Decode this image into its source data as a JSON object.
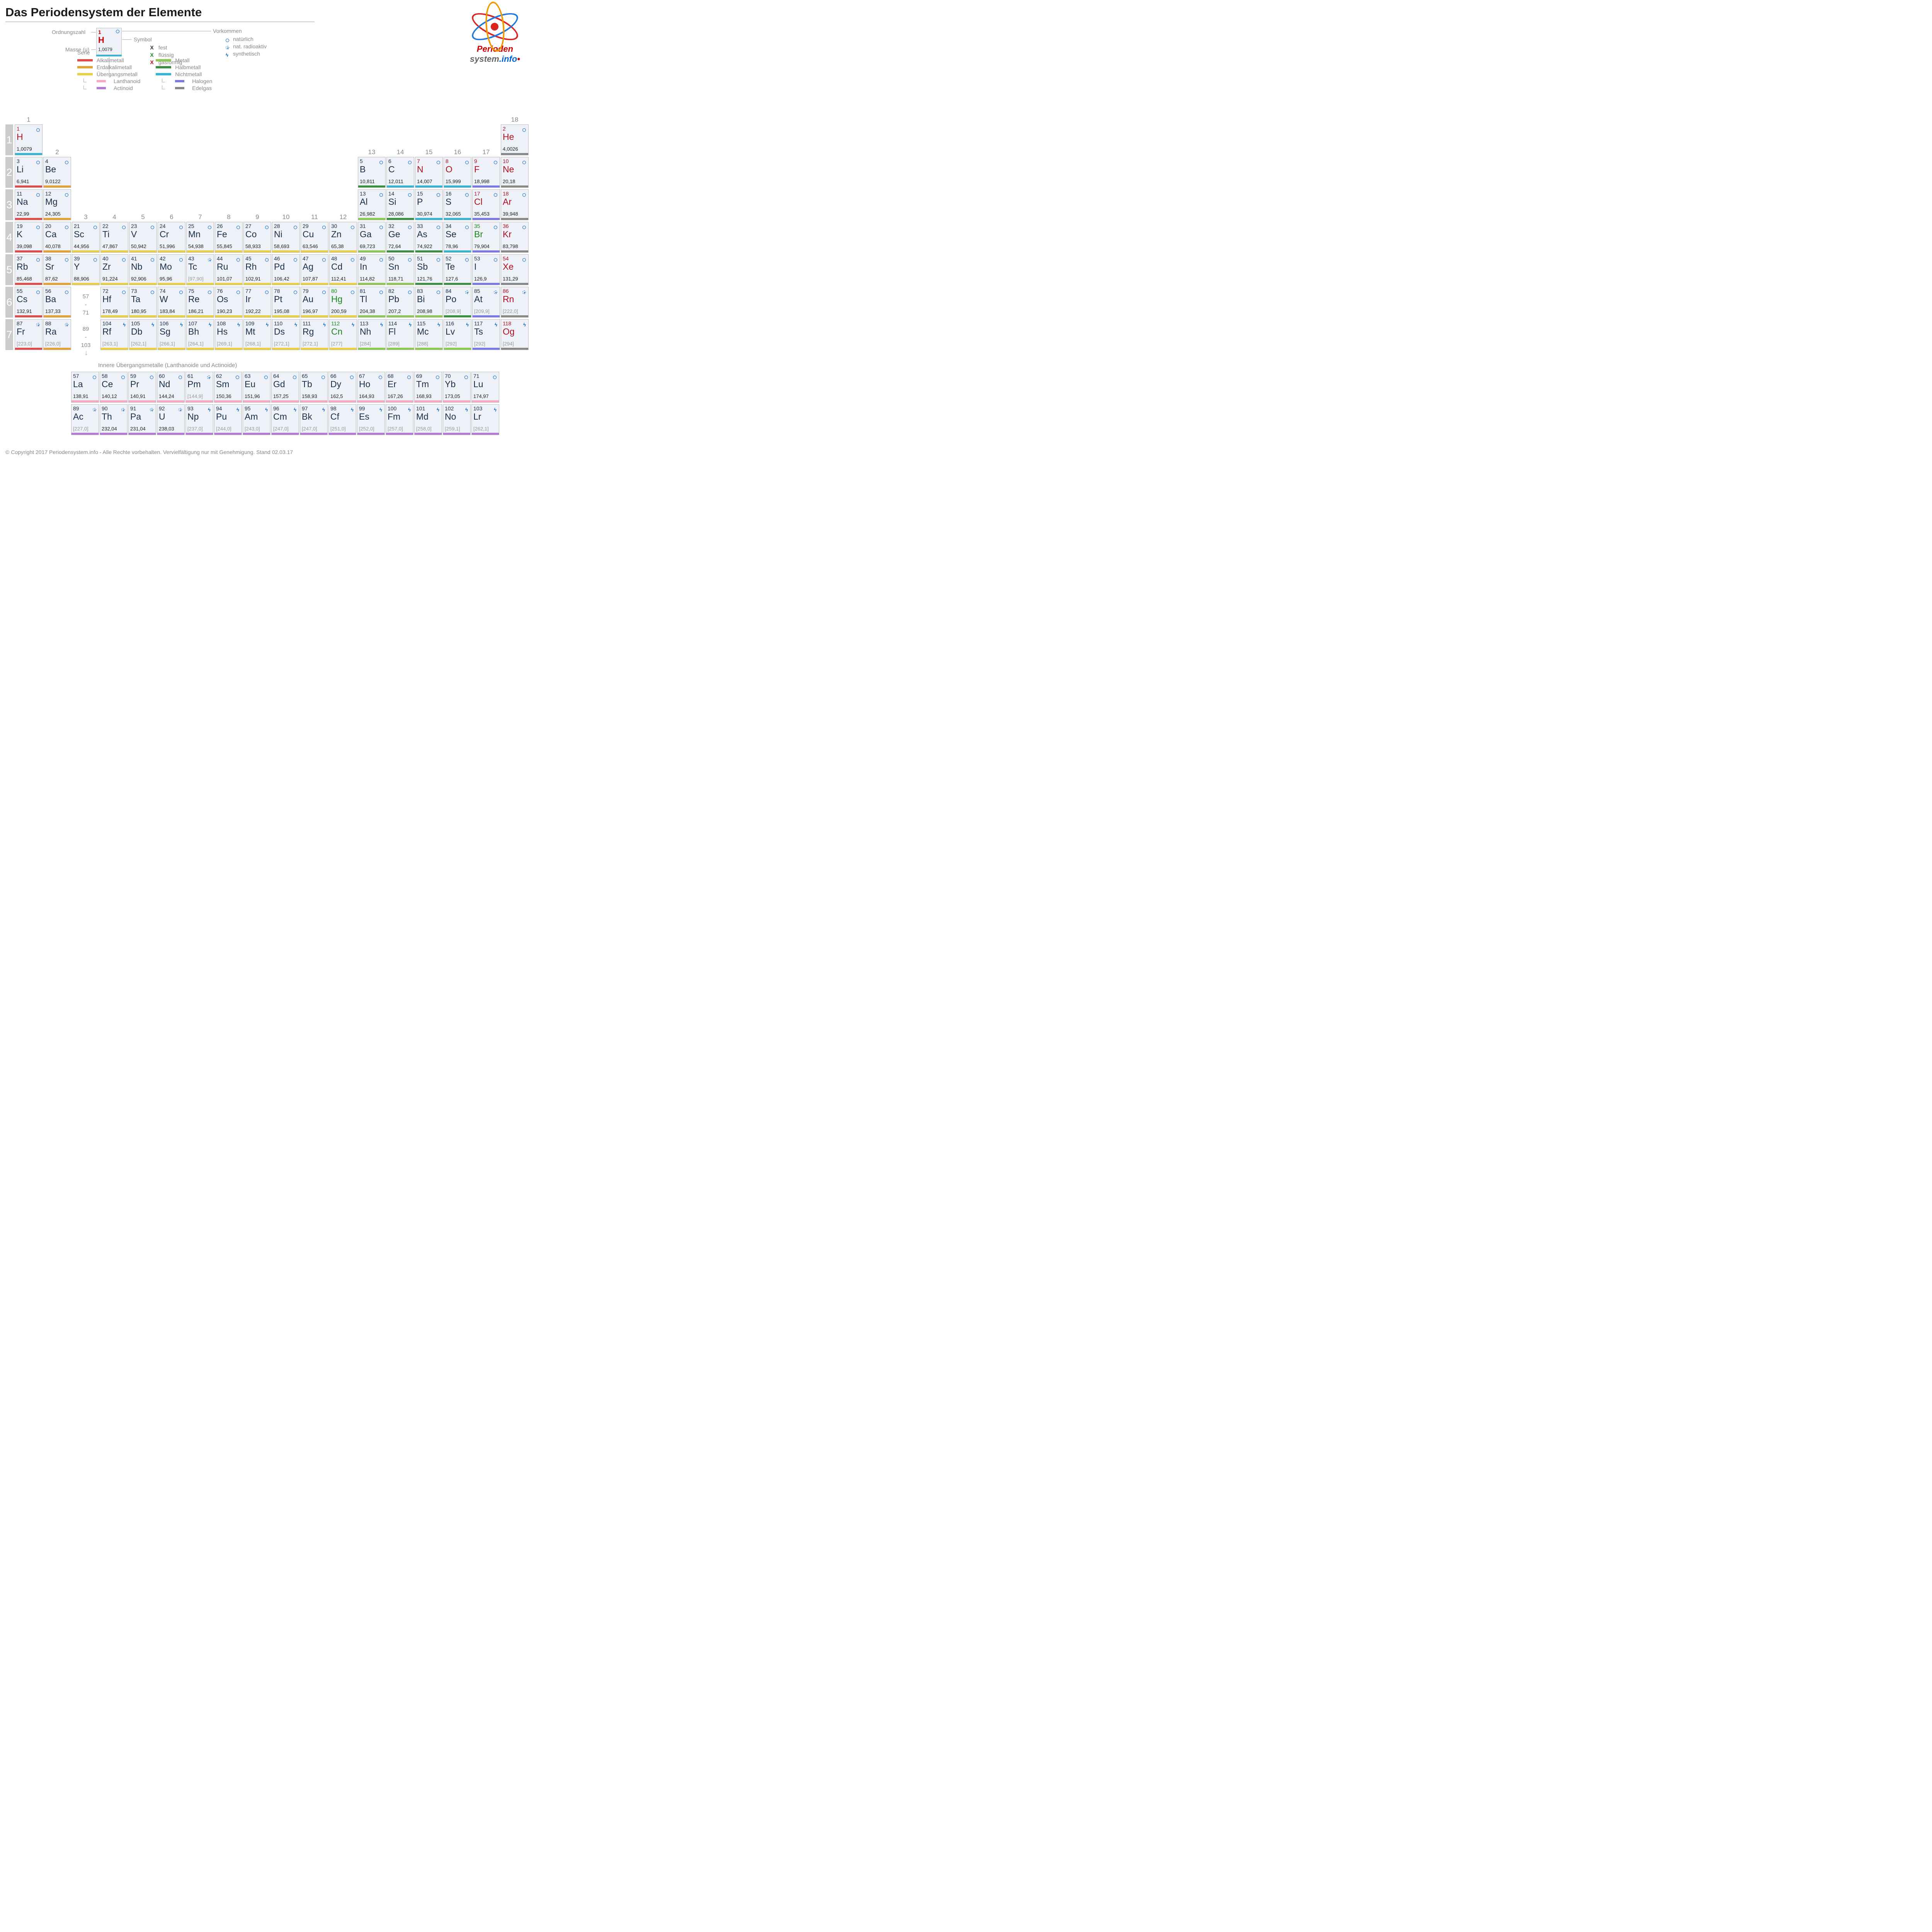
{
  "title": "Das Periodensystem der Elemente",
  "labels": {
    "ordnungszahl": "Ordnungszahl",
    "masse": "Masse (u)",
    "symbol": "Symbol",
    "vorkommen": "Vorkommen",
    "serie": "Serie",
    "inner": "Innere Übergangsmetalle (Lanthanoide und Actinoide)"
  },
  "example": {
    "num": "1",
    "sym": "H",
    "mass": "1,0079"
  },
  "state_legend": [
    {
      "x": "X",
      "c": "#333",
      "l": "fest"
    },
    {
      "x": "X",
      "c": "#1a8a1a",
      "l": "flüssig"
    },
    {
      "x": "X",
      "c": "#b01020",
      "l": "gasförmig"
    }
  ],
  "occ_legend": [
    {
      "t": "c",
      "l": "natürlich"
    },
    {
      "t": "r",
      "l": "nat. radioaktiv"
    },
    {
      "t": "s",
      "l": "synthetisch"
    }
  ],
  "series": [
    {
      "c": "#e24a4a",
      "l": "Alkalimetall"
    },
    {
      "c": "#e8a030",
      "l": "Erdalkalimetall"
    },
    {
      "c": "#e8d040",
      "l": "Übergangsmetall"
    },
    {
      "c": "#f8a8c0",
      "l": "Lanthanoid",
      "sub": 1
    },
    {
      "c": "#b878d8",
      "l": "Actinoid",
      "sub": 1
    },
    {
      "c": "#8dc850",
      "l": "Metall"
    },
    {
      "c": "#3a9040",
      "l": "Halbmetall"
    },
    {
      "c": "#33b5d8",
      "l": "Nichtmetall"
    },
    {
      "c": "#7878e8",
      "l": "Halogen",
      "sub": 1
    },
    {
      "c": "#888",
      "l": "Edelgas",
      "sub": 1
    }
  ],
  "colors": {
    "alkali": "#e24a4a",
    "earth": "#e8a030",
    "trans": "#e8d040",
    "lanth": "#f8a8c0",
    "act": "#b878d8",
    "metal": "#8dc850",
    "metalloid": "#3a9040",
    "nonmetal": "#33b5d8",
    "halogen": "#7878e8",
    "noble": "#888"
  },
  "groups": [
    "1",
    "2",
    "3",
    "4",
    "5",
    "6",
    "7",
    "8",
    "9",
    "10",
    "11",
    "12",
    "13",
    "14",
    "15",
    "16",
    "17",
    "18"
  ],
  "periods": [
    "1",
    "2",
    "3",
    "4",
    "5",
    "6",
    "7"
  ],
  "placeholders": [
    {
      "r": 6,
      "g": 3,
      "t": "57\n-\n71"
    },
    {
      "r": 7,
      "g": 3,
      "t": "89\n-\n103"
    }
  ],
  "elements": [
    {
      "n": 1,
      "s": "H",
      "m": "1,0079",
      "r": 1,
      "g": 1,
      "st": "g",
      "o": "c",
      "se": "nonmetal"
    },
    {
      "n": 2,
      "s": "He",
      "m": "4,0026",
      "r": 1,
      "g": 18,
      "st": "g",
      "o": "c",
      "se": "noble"
    },
    {
      "n": 3,
      "s": "Li",
      "m": "6,941",
      "r": 2,
      "g": 1,
      "st": "s",
      "o": "c",
      "se": "alkali"
    },
    {
      "n": 4,
      "s": "Be",
      "m": "9,0122",
      "r": 2,
      "g": 2,
      "st": "s",
      "o": "c",
      "se": "earth"
    },
    {
      "n": 5,
      "s": "B",
      "m": "10,811",
      "r": 2,
      "g": 13,
      "st": "s",
      "o": "c",
      "se": "metalloid"
    },
    {
      "n": 6,
      "s": "C",
      "m": "12,011",
      "r": 2,
      "g": 14,
      "st": "s",
      "o": "c",
      "se": "nonmetal"
    },
    {
      "n": 7,
      "s": "N",
      "m": "14,007",
      "r": 2,
      "g": 15,
      "st": "g",
      "o": "c",
      "se": "nonmetal"
    },
    {
      "n": 8,
      "s": "O",
      "m": "15,999",
      "r": 2,
      "g": 16,
      "st": "g",
      "o": "c",
      "se": "nonmetal"
    },
    {
      "n": 9,
      "s": "F",
      "m": "18,998",
      "r": 2,
      "g": 17,
      "st": "g",
      "o": "c",
      "se": "halogen"
    },
    {
      "n": 10,
      "s": "Ne",
      "m": "20,18",
      "r": 2,
      "g": 18,
      "st": "g",
      "o": "c",
      "se": "noble"
    },
    {
      "n": 11,
      "s": "Na",
      "m": "22,99",
      "r": 3,
      "g": 1,
      "st": "s",
      "o": "c",
      "se": "alkali"
    },
    {
      "n": 12,
      "s": "Mg",
      "m": "24,305",
      "r": 3,
      "g": 2,
      "st": "s",
      "o": "c",
      "se": "earth"
    },
    {
      "n": 13,
      "s": "Al",
      "m": "26,982",
      "r": 3,
      "g": 13,
      "st": "s",
      "o": "c",
      "se": "metal"
    },
    {
      "n": 14,
      "s": "Si",
      "m": "28,086",
      "r": 3,
      "g": 14,
      "st": "s",
      "o": "c",
      "se": "metalloid"
    },
    {
      "n": 15,
      "s": "P",
      "m": "30,974",
      "r": 3,
      "g": 15,
      "st": "s",
      "o": "c",
      "se": "nonmetal"
    },
    {
      "n": 16,
      "s": "S",
      "m": "32,065",
      "r": 3,
      "g": 16,
      "st": "s",
      "o": "c",
      "se": "nonmetal"
    },
    {
      "n": 17,
      "s": "Cl",
      "m": "35,453",
      "r": 3,
      "g": 17,
      "st": "g",
      "o": "c",
      "se": "halogen"
    },
    {
      "n": 18,
      "s": "Ar",
      "m": "39,948",
      "r": 3,
      "g": 18,
      "st": "g",
      "o": "c",
      "se": "noble"
    },
    {
      "n": 19,
      "s": "K",
      "m": "39,098",
      "r": 4,
      "g": 1,
      "st": "s",
      "o": "c",
      "se": "alkali"
    },
    {
      "n": 20,
      "s": "Ca",
      "m": "40,078",
      "r": 4,
      "g": 2,
      "st": "s",
      "o": "c",
      "se": "earth"
    },
    {
      "n": 21,
      "s": "Sc",
      "m": "44,956",
      "r": 4,
      "g": 3,
      "st": "s",
      "o": "c",
      "se": "trans"
    },
    {
      "n": 22,
      "s": "Ti",
      "m": "47,867",
      "r": 4,
      "g": 4,
      "st": "s",
      "o": "c",
      "se": "trans"
    },
    {
      "n": 23,
      "s": "V",
      "m": "50,942",
      "r": 4,
      "g": 5,
      "st": "s",
      "o": "c",
      "se": "trans"
    },
    {
      "n": 24,
      "s": "Cr",
      "m": "51,996",
      "r": 4,
      "g": 6,
      "st": "s",
      "o": "c",
      "se": "trans"
    },
    {
      "n": 25,
      "s": "Mn",
      "m": "54,938",
      "r": 4,
      "g": 7,
      "st": "s",
      "o": "c",
      "se": "trans"
    },
    {
      "n": 26,
      "s": "Fe",
      "m": "55,845",
      "r": 4,
      "g": 8,
      "st": "s",
      "o": "c",
      "se": "trans"
    },
    {
      "n": 27,
      "s": "Co",
      "m": "58,933",
      "r": 4,
      "g": 9,
      "st": "s",
      "o": "c",
      "se": "trans"
    },
    {
      "n": 28,
      "s": "Ni",
      "m": "58,693",
      "r": 4,
      "g": 10,
      "st": "s",
      "o": "c",
      "se": "trans"
    },
    {
      "n": 29,
      "s": "Cu",
      "m": "63,546",
      "r": 4,
      "g": 11,
      "st": "s",
      "o": "c",
      "se": "trans"
    },
    {
      "n": 30,
      "s": "Zn",
      "m": "65,38",
      "r": 4,
      "g": 12,
      "st": "s",
      "o": "c",
      "se": "trans"
    },
    {
      "n": 31,
      "s": "Ga",
      "m": "69,723",
      "r": 4,
      "g": 13,
      "st": "s",
      "o": "c",
      "se": "metal"
    },
    {
      "n": 32,
      "s": "Ge",
      "m": "72,64",
      "r": 4,
      "g": 14,
      "st": "s",
      "o": "c",
      "se": "metalloid"
    },
    {
      "n": 33,
      "s": "As",
      "m": "74,922",
      "r": 4,
      "g": 15,
      "st": "s",
      "o": "c",
      "se": "metalloid"
    },
    {
      "n": 34,
      "s": "Se",
      "m": "78,96",
      "r": 4,
      "g": 16,
      "st": "s",
      "o": "c",
      "se": "nonmetal"
    },
    {
      "n": 35,
      "s": "Br",
      "m": "79,904",
      "r": 4,
      "g": 17,
      "st": "l",
      "o": "c",
      "se": "halogen"
    },
    {
      "n": 36,
      "s": "Kr",
      "m": "83,798",
      "r": 4,
      "g": 18,
      "st": "g",
      "o": "c",
      "se": "noble"
    },
    {
      "n": 37,
      "s": "Rb",
      "m": "85,468",
      "r": 5,
      "g": 1,
      "st": "s",
      "o": "c",
      "se": "alkali"
    },
    {
      "n": 38,
      "s": "Sr",
      "m": "87,62",
      "r": 5,
      "g": 2,
      "st": "s",
      "o": "c",
      "se": "earth"
    },
    {
      "n": 39,
      "s": "Y",
      "m": "88,906",
      "r": 5,
      "g": 3,
      "st": "s",
      "o": "c",
      "se": "trans"
    },
    {
      "n": 40,
      "s": "Zr",
      "m": "91,224",
      "r": 5,
      "g": 4,
      "st": "s",
      "o": "c",
      "se": "trans"
    },
    {
      "n": 41,
      "s": "Nb",
      "m": "92,906",
      "r": 5,
      "g": 5,
      "st": "s",
      "o": "c",
      "se": "trans"
    },
    {
      "n": 42,
      "s": "Mo",
      "m": "95,96",
      "r": 5,
      "g": 6,
      "st": "s",
      "o": "c",
      "se": "trans"
    },
    {
      "n": 43,
      "s": "Tc",
      "m": "[97,90]",
      "r": 5,
      "g": 7,
      "st": "s",
      "o": "r",
      "se": "trans",
      "br": 1
    },
    {
      "n": 44,
      "s": "Ru",
      "m": "101,07",
      "r": 5,
      "g": 8,
      "st": "s",
      "o": "c",
      "se": "trans"
    },
    {
      "n": 45,
      "s": "Rh",
      "m": "102,91",
      "r": 5,
      "g": 9,
      "st": "s",
      "o": "c",
      "se": "trans"
    },
    {
      "n": 46,
      "s": "Pd",
      "m": "106,42",
      "r": 5,
      "g": 10,
      "st": "s",
      "o": "c",
      "se": "trans"
    },
    {
      "n": 47,
      "s": "Ag",
      "m": "107,87",
      "r": 5,
      "g": 11,
      "st": "s",
      "o": "c",
      "se": "trans"
    },
    {
      "n": 48,
      "s": "Cd",
      "m": "112,41",
      "r": 5,
      "g": 12,
      "st": "s",
      "o": "c",
      "se": "trans"
    },
    {
      "n": 49,
      "s": "In",
      "m": "114,82",
      "r": 5,
      "g": 13,
      "st": "s",
      "o": "c",
      "se": "metal"
    },
    {
      "n": 50,
      "s": "Sn",
      "m": "118,71",
      "r": 5,
      "g": 14,
      "st": "s",
      "o": "c",
      "se": "metal"
    },
    {
      "n": 51,
      "s": "Sb",
      "m": "121,76",
      "r": 5,
      "g": 15,
      "st": "s",
      "o": "c",
      "se": "metalloid"
    },
    {
      "n": 52,
      "s": "Te",
      "m": "127,6",
      "r": 5,
      "g": 16,
      "st": "s",
      "o": "c",
      "se": "metalloid"
    },
    {
      "n": 53,
      "s": "I",
      "m": "126,9",
      "r": 5,
      "g": 17,
      "st": "s",
      "o": "c",
      "se": "halogen"
    },
    {
      "n": 54,
      "s": "Xe",
      "m": "131,29",
      "r": 5,
      "g": 18,
      "st": "g",
      "o": "c",
      "se": "noble"
    },
    {
      "n": 55,
      "s": "Cs",
      "m": "132,91",
      "r": 6,
      "g": 1,
      "st": "s",
      "o": "c",
      "se": "alkali"
    },
    {
      "n": 56,
      "s": "Ba",
      "m": "137,33",
      "r": 6,
      "g": 2,
      "st": "s",
      "o": "c",
      "se": "earth"
    },
    {
      "n": 72,
      "s": "Hf",
      "m": "178,49",
      "r": 6,
      "g": 4,
      "st": "s",
      "o": "c",
      "se": "trans"
    },
    {
      "n": 73,
      "s": "Ta",
      "m": "180,95",
      "r": 6,
      "g": 5,
      "st": "s",
      "o": "c",
      "se": "trans"
    },
    {
      "n": 74,
      "s": "W",
      "m": "183,84",
      "r": 6,
      "g": 6,
      "st": "s",
      "o": "c",
      "se": "trans"
    },
    {
      "n": 75,
      "s": "Re",
      "m": "186,21",
      "r": 6,
      "g": 7,
      "st": "s",
      "o": "c",
      "se": "trans"
    },
    {
      "n": 76,
      "s": "Os",
      "m": "190,23",
      "r": 6,
      "g": 8,
      "st": "s",
      "o": "c",
      "se": "trans"
    },
    {
      "n": 77,
      "s": "Ir",
      "m": "192,22",
      "r": 6,
      "g": 9,
      "st": "s",
      "o": "c",
      "se": "trans"
    },
    {
      "n": 78,
      "s": "Pt",
      "m": "195,08",
      "r": 6,
      "g": 10,
      "st": "s",
      "o": "c",
      "se": "trans"
    },
    {
      "n": 79,
      "s": "Au",
      "m": "196,97",
      "r": 6,
      "g": 11,
      "st": "s",
      "o": "c",
      "se": "trans"
    },
    {
      "n": 80,
      "s": "Hg",
      "m": "200,59",
      "r": 6,
      "g": 12,
      "st": "l",
      "o": "c",
      "se": "trans"
    },
    {
      "n": 81,
      "s": "Tl",
      "m": "204,38",
      "r": 6,
      "g": 13,
      "st": "s",
      "o": "c",
      "se": "metal"
    },
    {
      "n": 82,
      "s": "Pb",
      "m": "207,2",
      "r": 6,
      "g": 14,
      "st": "s",
      "o": "c",
      "se": "metal"
    },
    {
      "n": 83,
      "s": "Bi",
      "m": "208,98",
      "r": 6,
      "g": 15,
      "st": "s",
      "o": "c",
      "se": "metal"
    },
    {
      "n": 84,
      "s": "Po",
      "m": "[208,9]",
      "r": 6,
      "g": 16,
      "st": "s",
      "o": "r",
      "se": "metalloid",
      "br": 1
    },
    {
      "n": 85,
      "s": "At",
      "m": "[209,9]",
      "r": 6,
      "g": 17,
      "st": "s",
      "o": "r",
      "se": "halogen",
      "br": 1
    },
    {
      "n": 86,
      "s": "Rn",
      "m": "[222,0]",
      "r": 6,
      "g": 18,
      "st": "g",
      "o": "r",
      "se": "noble",
      "br": 1
    },
    {
      "n": 87,
      "s": "Fr",
      "m": "[223,0]",
      "r": 7,
      "g": 1,
      "st": "s",
      "o": "r",
      "se": "alkali",
      "br": 1
    },
    {
      "n": 88,
      "s": "Ra",
      "m": "[226,0]",
      "r": 7,
      "g": 2,
      "st": "s",
      "o": "r",
      "se": "earth",
      "br": 1
    },
    {
      "n": 104,
      "s": "Rf",
      "m": "[263,1]",
      "r": 7,
      "g": 4,
      "st": "s",
      "o": "s",
      "se": "trans",
      "br": 1
    },
    {
      "n": 105,
      "s": "Db",
      "m": "[262,1]",
      "r": 7,
      "g": 5,
      "st": "s",
      "o": "s",
      "se": "trans",
      "br": 1
    },
    {
      "n": 106,
      "s": "Sg",
      "m": "[266,1]",
      "r": 7,
      "g": 6,
      "st": "s",
      "o": "s",
      "se": "trans",
      "br": 1
    },
    {
      "n": 107,
      "s": "Bh",
      "m": "[264,1]",
      "r": 7,
      "g": 7,
      "st": "s",
      "o": "s",
      "se": "trans",
      "br": 1
    },
    {
      "n": 108,
      "s": "Hs",
      "m": "[269,1]",
      "r": 7,
      "g": 8,
      "st": "s",
      "o": "s",
      "se": "trans",
      "br": 1
    },
    {
      "n": 109,
      "s": "Mt",
      "m": "[268,1]",
      "r": 7,
      "g": 9,
      "st": "s",
      "o": "s",
      "se": "trans",
      "br": 1
    },
    {
      "n": 110,
      "s": "Ds",
      "m": "[272,1]",
      "r": 7,
      "g": 10,
      "st": "s",
      "o": "s",
      "se": "trans",
      "br": 1
    },
    {
      "n": 111,
      "s": "Rg",
      "m": "[272,1]",
      "r": 7,
      "g": 11,
      "st": "s",
      "o": "s",
      "se": "trans",
      "br": 1
    },
    {
      "n": 112,
      "s": "Cn",
      "m": "[277]",
      "r": 7,
      "g": 12,
      "st": "l",
      "o": "s",
      "se": "trans",
      "br": 1
    },
    {
      "n": 113,
      "s": "Nh",
      "m": "[284]",
      "r": 7,
      "g": 13,
      "st": "s",
      "o": "s",
      "se": "metal",
      "br": 1
    },
    {
      "n": 114,
      "s": "Fl",
      "m": "[289]",
      "r": 7,
      "g": 14,
      "st": "s",
      "o": "s",
      "se": "metal",
      "br": 1
    },
    {
      "n": 115,
      "s": "Mc",
      "m": "[288]",
      "r": 7,
      "g": 15,
      "st": "s",
      "o": "s",
      "se": "metal",
      "br": 1
    },
    {
      "n": 116,
      "s": "Lv",
      "m": "[292]",
      "r": 7,
      "g": 16,
      "st": "s",
      "o": "s",
      "se": "metal",
      "br": 1
    },
    {
      "n": 117,
      "s": "Ts",
      "m": "[292]",
      "r": 7,
      "g": 17,
      "st": "s",
      "o": "s",
      "se": "halogen",
      "br": 1
    },
    {
      "n": 118,
      "s": "Og",
      "m": "[294]",
      "r": 7,
      "g": 18,
      "st": "g",
      "o": "s",
      "se": "noble",
      "br": 1
    }
  ],
  "lanth": [
    {
      "n": 57,
      "s": "La",
      "m": "138,91",
      "st": "s",
      "o": "c",
      "se": "lanth"
    },
    {
      "n": 58,
      "s": "Ce",
      "m": "140,12",
      "st": "s",
      "o": "c",
      "se": "lanth"
    },
    {
      "n": 59,
      "s": "Pr",
      "m": "140,91",
      "st": "s",
      "o": "c",
      "se": "lanth"
    },
    {
      "n": 60,
      "s": "Nd",
      "m": "144,24",
      "st": "s",
      "o": "c",
      "se": "lanth"
    },
    {
      "n": 61,
      "s": "Pm",
      "m": "[144,9]",
      "st": "s",
      "o": "r",
      "se": "lanth",
      "br": 1
    },
    {
      "n": 62,
      "s": "Sm",
      "m": "150,36",
      "st": "s",
      "o": "c",
      "se": "lanth"
    },
    {
      "n": 63,
      "s": "Eu",
      "m": "151,96",
      "st": "s",
      "o": "c",
      "se": "lanth"
    },
    {
      "n": 64,
      "s": "Gd",
      "m": "157,25",
      "st": "s",
      "o": "c",
      "se": "lanth"
    },
    {
      "n": 65,
      "s": "Tb",
      "m": "158,93",
      "st": "s",
      "o": "c",
      "se": "lanth"
    },
    {
      "n": 66,
      "s": "Dy",
      "m": "162,5",
      "st": "s",
      "o": "c",
      "se": "lanth"
    },
    {
      "n": 67,
      "s": "Ho",
      "m": "164,93",
      "st": "s",
      "o": "c",
      "se": "lanth"
    },
    {
      "n": 68,
      "s": "Er",
      "m": "167,26",
      "st": "s",
      "o": "c",
      "se": "lanth"
    },
    {
      "n": 69,
      "s": "Tm",
      "m": "168,93",
      "st": "s",
      "o": "c",
      "se": "lanth"
    },
    {
      "n": 70,
      "s": "Yb",
      "m": "173,05",
      "st": "s",
      "o": "c",
      "se": "lanth"
    },
    {
      "n": 71,
      "s": "Lu",
      "m": "174,97",
      "st": "s",
      "o": "c",
      "se": "lanth"
    }
  ],
  "act": [
    {
      "n": 89,
      "s": "Ac",
      "m": "[227,0]",
      "st": "s",
      "o": "r",
      "se": "act",
      "br": 1
    },
    {
      "n": 90,
      "s": "Th",
      "m": "232,04",
      "st": "s",
      "o": "r",
      "se": "act"
    },
    {
      "n": 91,
      "s": "Pa",
      "m": "231,04",
      "st": "s",
      "o": "r",
      "se": "act"
    },
    {
      "n": 92,
      "s": "U",
      "m": "238,03",
      "st": "s",
      "o": "r",
      "se": "act"
    },
    {
      "n": 93,
      "s": "Np",
      "m": "[237,0]",
      "st": "s",
      "o": "s",
      "se": "act",
      "br": 1
    },
    {
      "n": 94,
      "s": "Pu",
      "m": "[244,0]",
      "st": "s",
      "o": "s",
      "se": "act",
      "br": 1
    },
    {
      "n": 95,
      "s": "Am",
      "m": "[243,0]",
      "st": "s",
      "o": "s",
      "se": "act",
      "br": 1
    },
    {
      "n": 96,
      "s": "Cm",
      "m": "[247,0]",
      "st": "s",
      "o": "s",
      "se": "act",
      "br": 1
    },
    {
      "n": 97,
      "s": "Bk",
      "m": "[247,0]",
      "st": "s",
      "o": "s",
      "se": "act",
      "br": 1
    },
    {
      "n": 98,
      "s": "Cf",
      "m": "[251,0]",
      "st": "s",
      "o": "s",
      "se": "act",
      "br": 1
    },
    {
      "n": 99,
      "s": "Es",
      "m": "[252,0]",
      "st": "s",
      "o": "s",
      "se": "act",
      "br": 1
    },
    {
      "n": 100,
      "s": "Fm",
      "m": "[257,0]",
      "st": "s",
      "o": "s",
      "se": "act",
      "br": 1
    },
    {
      "n": 101,
      "s": "Md",
      "m": "[258,0]",
      "st": "s",
      "o": "s",
      "se": "act",
      "br": 1
    },
    {
      "n": 102,
      "s": "No",
      "m": "[259,1]",
      "st": "s",
      "o": "s",
      "se": "act",
      "br": 1
    },
    {
      "n": 103,
      "s": "Lr",
      "m": "[262,1]",
      "st": "s",
      "o": "s",
      "se": "act",
      "br": 1
    }
  ],
  "footer": "© Copyright 2017 Periodensystem.info - Alle Rechte vorbehalten. Vervielfältigung nur mit Genehmigung. Stand 02.03.17",
  "layout": {
    "cellW": 72,
    "cellH": 80,
    "gapX": 2,
    "gapY": 4,
    "offsetX": 24,
    "groupLabelY": -22,
    "innerOffsetX": 170,
    "innerRow1Y": 640,
    "innerRow2Y": 724,
    "innerLabelY": 615,
    "gridHeight": 820
  }
}
